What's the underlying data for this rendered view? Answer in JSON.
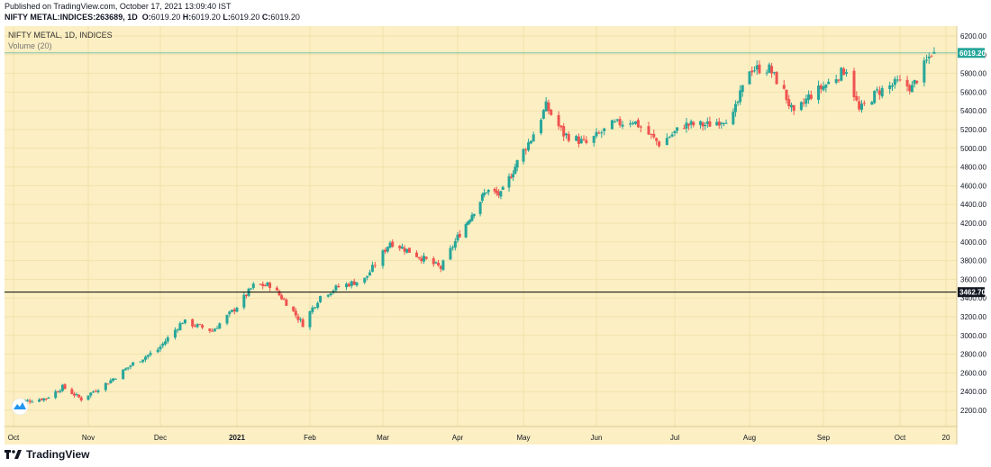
{
  "header": {
    "published": "Published on TradingView.com, October 17, 2021 13:09:40 IST",
    "symbol": "NIFTY METAL:INDICES:263689, 1D",
    "o_label": "O:",
    "o_value": "6019.20",
    "h_label": "H:",
    "h_value": "6019.20",
    "l_label": "L:",
    "l_value": "6019.20",
    "c_label": "C:",
    "c_value": "6019.20"
  },
  "legend": {
    "title": "NIFTY METAL, 1D, INDICES",
    "volume": "Volume (20)"
  },
  "footer": {
    "brand": "TradingView"
  },
  "colors": {
    "background": "#fcefc3",
    "up": "#26a69a",
    "down": "#ef5350",
    "grid": "#f1e2ab",
    "last_price_line": "#26a69a",
    "horizontal_line": "#000000"
  },
  "chart_data": {
    "type": "candlestick",
    "y_ticks": [
      "2200.00",
      "2400.00",
      "2600.00",
      "2800.00",
      "3000.00",
      "3200.00",
      "3400.00",
      "3600.00",
      "3800.00",
      "4000.00",
      "4200.00",
      "4400.00",
      "4600.00",
      "4800.00",
      "5000.00",
      "5200.00",
      "5400.00",
      "5600.00",
      "5800.00",
      "6000.00",
      "6200.00"
    ],
    "x_ticks": [
      "Oct",
      "Nov",
      "Dec",
      "2021",
      "Feb",
      "Mar",
      "Apr",
      "May",
      "Jun",
      "Jul",
      "Aug",
      "Sep",
      "Oct",
      "20"
    ],
    "ylim": [
      2000,
      6300
    ],
    "last_price": 6019.2,
    "last_price_label": "6019.20",
    "horizontal_line": 3462.7,
    "horizontal_line_label": "3462.70",
    "close_path": [
      [
        "2020-10-01",
        2280
      ],
      [
        "2020-10-15",
        2330
      ],
      [
        "2020-10-22",
        2450
      ],
      [
        "2020-10-30",
        2320
      ],
      [
        "2020-11-10",
        2500
      ],
      [
        "2020-11-20",
        2700
      ],
      [
        "2020-11-30",
        2850
      ],
      [
        "2020-12-10",
        3150
      ],
      [
        "2020-12-22",
        3050
      ],
      [
        "2020-12-31",
        3280
      ],
      [
        "2021-01-08",
        3530
      ],
      [
        "2021-01-15",
        3540
      ],
      [
        "2021-01-22",
        3350
      ],
      [
        "2021-01-29",
        3120
      ],
      [
        "2021-02-05",
        3420
      ],
      [
        "2021-02-12",
        3520
      ],
      [
        "2021-02-22",
        3600
      ],
      [
        "2021-03-04",
        4000
      ],
      [
        "2021-03-12",
        3900
      ],
      [
        "2021-03-25",
        3720
      ],
      [
        "2021-04-01",
        4050
      ],
      [
        "2021-04-08",
        4300
      ],
      [
        "2021-04-15",
        4550
      ],
      [
        "2021-04-22",
        4500
      ],
      [
        "2021-04-30",
        4850
      ],
      [
        "2021-05-06",
        5100
      ],
      [
        "2021-05-12",
        5450
      ],
      [
        "2021-05-19",
        5150
      ],
      [
        "2021-05-28",
        5050
      ],
      [
        "2021-06-07",
        5250
      ],
      [
        "2021-06-15",
        5300
      ],
      [
        "2021-06-25",
        5050
      ],
      [
        "2021-07-05",
        5250
      ],
      [
        "2021-07-15",
        5250
      ],
      [
        "2021-07-26",
        5350
      ],
      [
        "2021-08-02",
        5850
      ],
      [
        "2021-08-10",
        5850
      ],
      [
        "2021-08-16",
        5600
      ],
      [
        "2021-08-20",
        5350
      ],
      [
        "2021-08-26",
        5550
      ],
      [
        "2021-09-03",
        5700
      ],
      [
        "2021-09-10",
        5850
      ],
      [
        "2021-09-15",
        5400
      ],
      [
        "2021-09-22",
        5600
      ],
      [
        "2021-09-30",
        5700
      ],
      [
        "2021-10-06",
        5650
      ],
      [
        "2021-10-14",
        6019.2
      ]
    ]
  }
}
